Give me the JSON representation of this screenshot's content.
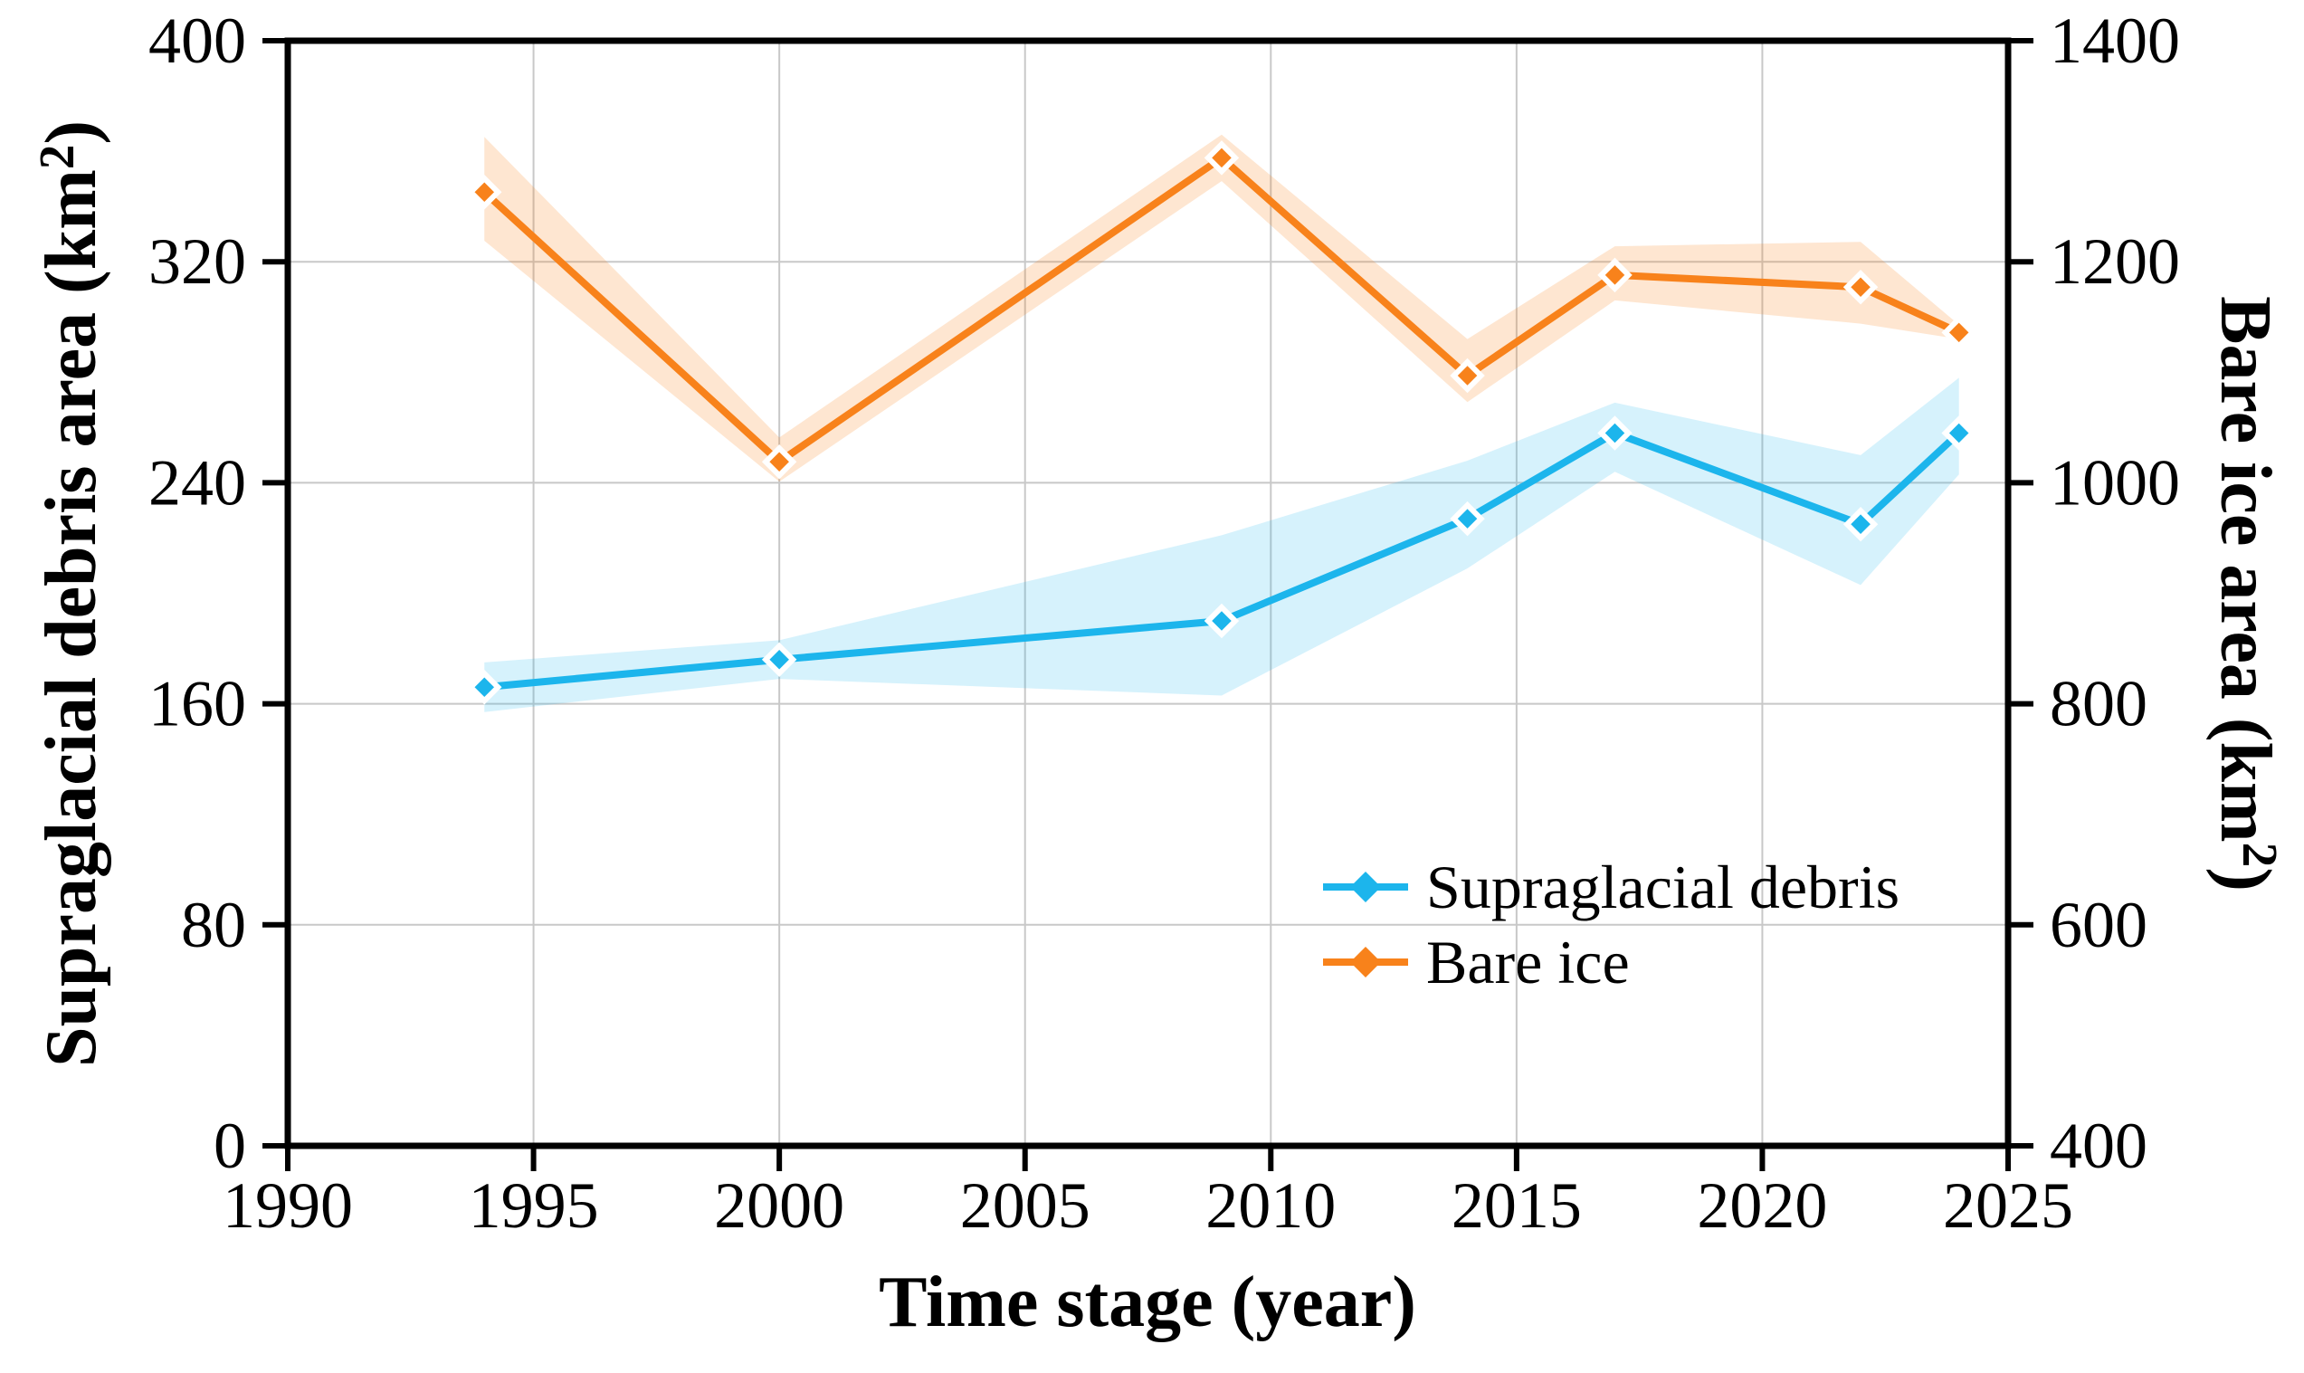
{
  "figure": {
    "background": "#ffffff",
    "grid_color": "#c8c8c8",
    "spine_color": "#000000",
    "x_axis": {
      "title": "Time stage (year)",
      "min": 1990,
      "max": 2025,
      "tick_step": 5,
      "tick_labels": [
        "1990",
        "1995",
        "2000",
        "2005",
        "2010",
        "2015",
        "2020",
        "2025"
      ]
    },
    "y_axis_left": {
      "title_main": "Supraglacial debris area (km",
      "title_sup": "2",
      "title_close": ")",
      "min": 0,
      "max": 400,
      "tick_step": 80,
      "tick_labels": [
        "0",
        "80",
        "160",
        "240",
        "320",
        "400"
      ]
    },
    "y_axis_right": {
      "title_main": "Bare ice area (km",
      "title_sup": "2",
      "title_close": ")",
      "min": 400,
      "max": 1400,
      "tick_step": 200,
      "tick_labels": [
        "400",
        "600",
        "800",
        "1000",
        "1200",
        "1400"
      ]
    },
    "legend": {
      "position": "inside lower right",
      "items": [
        {
          "label": "Supraglacial debris",
          "color": "#1cb5ec"
        },
        {
          "label": "Bare ice",
          "color": "#f8821b"
        }
      ]
    }
  },
  "chart_data": {
    "type": "line",
    "title": "",
    "xlabel": "Time stage (year)",
    "ylabel_left": "Supraglacial debris area (km2)",
    "ylabel_right": "Bare ice area (km2)",
    "x": [
      1994,
      2000,
      2009,
      2014,
      2017,
      2022,
      2024
    ],
    "xlim": [
      1990,
      2025
    ],
    "ylim_left": [
      0,
      400
    ],
    "ylim_right": [
      400,
      1400
    ],
    "grid": true,
    "marker": "diamond",
    "series": [
      {
        "name": "Supraglacial debris",
        "axis": "left",
        "color": "#1cb5ec",
        "band_alpha": 0.18,
        "values": [
          166,
          176,
          190,
          227,
          258,
          225,
          258
        ],
        "band_lower": [
          157,
          169,
          163,
          209,
          244,
          203,
          243
        ],
        "band_upper": [
          175,
          183,
          221,
          248,
          269,
          250,
          278
        ]
      },
      {
        "name": "Bare ice",
        "axis": "right",
        "color": "#f8821b",
        "band_alpha": 0.2,
        "values": [
          1263,
          1019,
          1294,
          1097,
          1188,
          1177,
          1136
        ],
        "band_lower": [
          1219,
          1001,
          1273,
          1073,
          1165,
          1144,
          1130
        ],
        "band_upper": [
          1313,
          1041,
          1315,
          1130,
          1214,
          1218,
          1143
        ]
      }
    ]
  }
}
